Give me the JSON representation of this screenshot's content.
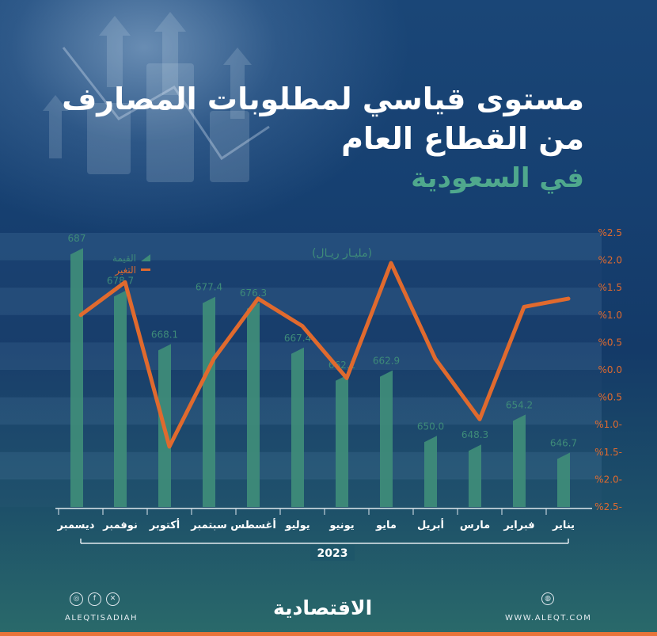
{
  "title": {
    "line1": "مستوى قياسي لمطلوبات المصارف",
    "line2": "من القطاع العام",
    "line3": "في السعودية"
  },
  "chart_data": {
    "type": "bar",
    "title": "مستوى قياسي لمطلوبات المصارف من القطاع العام في السعودية",
    "unit": "(مليـار ريـال)",
    "categories": [
      "يناير",
      "فبراير",
      "مارس",
      "أبريل",
      "مايو",
      "يونيو",
      "يوليو",
      "أغسطس",
      "سبتمبر",
      "أكتوبر",
      "نوفمبر",
      "ديسمبر"
    ],
    "year": "2023",
    "series": [
      {
        "name": "القيمة",
        "kind": "bar",
        "color": "#3e8b79",
        "values": [
          646.7,
          654.2,
          648.3,
          650.0,
          662.9,
          662.1,
          667.4,
          676.3,
          677.4,
          668.1,
          678.7,
          687
        ],
        "labels": [
          "646.7",
          "654.2",
          "648.3",
          "650.0",
          "662.9",
          "662.1",
          "667.4",
          "676.3",
          "677.4",
          "668.1",
          "678.7",
          "687"
        ]
      },
      {
        "name": "التغير",
        "kind": "line",
        "color": "#e06a2e",
        "values": [
          1.3,
          1.15,
          -0.9,
          0.2,
          1.95,
          -0.15,
          0.8,
          1.3,
          0.2,
          -1.4,
          1.6,
          1.0
        ]
      }
    ],
    "right_axis": {
      "ylim": [
        -2.5,
        2.5
      ],
      "ticks": [
        "%2.5",
        "%2.0",
        "%1.5",
        "%1.0",
        "%0.5",
        "%0.0",
        "%0.5",
        "%1.0-",
        "%1.5-",
        "%2.0-",
        "%2.5-"
      ]
    },
    "bar_ylim": [
      636,
      690
    ]
  },
  "footer": {
    "handle": "ALEQTISADIAH",
    "brand": "الاقتصادية",
    "website": "WWW.ALEQT.COM",
    "social_icons": [
      "instagram-icon",
      "facebook-icon",
      "x-icon"
    ]
  }
}
